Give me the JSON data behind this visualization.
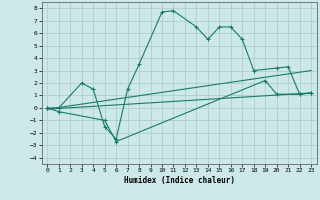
{
  "xlabel": "Humidex (Indice chaleur)",
  "background_color": "#cce8e8",
  "grid_color": "#b0cccc",
  "line_color": "#1a7a6a",
  "xlim": [
    -0.5,
    23.5
  ],
  "ylim": [
    -4.5,
    8.5
  ],
  "yticks": [
    -4,
    -3,
    -2,
    -1,
    0,
    1,
    2,
    3,
    4,
    5,
    6,
    7,
    8
  ],
  "xticks": [
    0,
    1,
    2,
    3,
    4,
    5,
    6,
    7,
    8,
    9,
    10,
    11,
    12,
    13,
    14,
    15,
    16,
    17,
    18,
    19,
    20,
    21,
    22,
    23
  ],
  "line1_x": [
    0,
    1,
    3,
    4,
    5,
    6,
    7,
    8,
    10,
    11,
    13,
    14,
    15,
    16,
    17,
    18,
    20,
    21,
    22,
    23
  ],
  "line1_y": [
    0,
    0,
    2.0,
    1.5,
    -1.5,
    -2.5,
    1.5,
    3.5,
    7.7,
    7.8,
    6.5,
    5.5,
    6.5,
    6.5,
    5.5,
    3.0,
    3.2,
    3.3,
    1.1,
    1.2
  ],
  "line2_x": [
    0,
    23
  ],
  "line2_y": [
    -0.1,
    3.0
  ],
  "line3_x": [
    0,
    23
  ],
  "line3_y": [
    -0.1,
    1.2
  ],
  "line4_x": [
    0,
    1,
    5,
    6,
    19,
    20,
    22,
    23
  ],
  "line4_y": [
    0.0,
    -0.3,
    -1.0,
    -2.7,
    2.2,
    1.1,
    1.1,
    1.2
  ]
}
